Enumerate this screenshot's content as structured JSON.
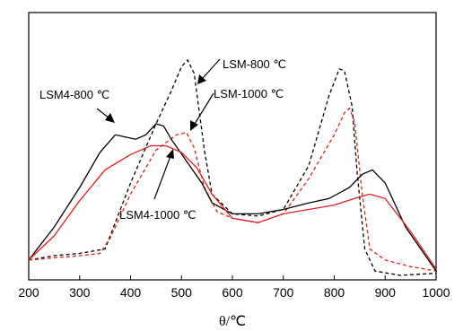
{
  "chart_data": {
    "type": "line",
    "xlabel": "θ/℃",
    "ylabel": "",
    "xlim": [
      200,
      1000
    ],
    "xticks": [
      200,
      300,
      400,
      500,
      600,
      700,
      800,
      900,
      1000
    ],
    "grid": false,
    "series": [
      {
        "name": "LSM-800 ℃",
        "color": "#000000",
        "dashed": true,
        "points": [
          [
            200,
            0.05
          ],
          [
            250,
            0.07
          ],
          [
            300,
            0.08
          ],
          [
            350,
            0.1
          ],
          [
            400,
            0.4
          ],
          [
            450,
            0.67
          ],
          [
            480,
            0.82
          ],
          [
            500,
            0.93
          ],
          [
            512,
            0.96
          ],
          [
            525,
            0.9
          ],
          [
            545,
            0.55
          ],
          [
            560,
            0.35
          ],
          [
            600,
            0.26
          ],
          [
            650,
            0.25
          ],
          [
            700,
            0.28
          ],
          [
            750,
            0.48
          ],
          [
            790,
            0.8
          ],
          [
            810,
            0.92
          ],
          [
            820,
            0.91
          ],
          [
            835,
            0.75
          ],
          [
            845,
            0.45
          ],
          [
            860,
            0.1
          ],
          [
            880,
            0.0
          ],
          [
            930,
            -0.02
          ],
          [
            1000,
            -0.01
          ]
        ]
      },
      {
        "name": "LSM-1000 ℃",
        "color": "#e02020",
        "dashed": true,
        "points": [
          [
            200,
            0.05
          ],
          [
            300,
            0.07
          ],
          [
            340,
            0.08
          ],
          [
            360,
            0.15
          ],
          [
            400,
            0.35
          ],
          [
            450,
            0.55
          ],
          [
            490,
            0.62
          ],
          [
            510,
            0.63
          ],
          [
            525,
            0.56
          ],
          [
            545,
            0.38
          ],
          [
            570,
            0.27
          ],
          [
            600,
            0.24
          ],
          [
            650,
            0.22
          ],
          [
            700,
            0.26
          ],
          [
            750,
            0.42
          ],
          [
            800,
            0.62
          ],
          [
            820,
            0.72
          ],
          [
            830,
            0.74
          ],
          [
            840,
            0.68
          ],
          [
            855,
            0.35
          ],
          [
            870,
            0.1
          ],
          [
            900,
            0.05
          ],
          [
            950,
            0.02
          ],
          [
            1000,
            0.0
          ]
        ]
      },
      {
        "name": "LSM4-800 ℃",
        "color": "#000000",
        "dashed": false,
        "points": [
          [
            200,
            0.05
          ],
          [
            250,
            0.2
          ],
          [
            300,
            0.38
          ],
          [
            340,
            0.54
          ],
          [
            370,
            0.62
          ],
          [
            390,
            0.61
          ],
          [
            410,
            0.6
          ],
          [
            430,
            0.62
          ],
          [
            450,
            0.67
          ],
          [
            465,
            0.66
          ],
          [
            480,
            0.6
          ],
          [
            510,
            0.5
          ],
          [
            540,
            0.4
          ],
          [
            560,
            0.31
          ],
          [
            600,
            0.26
          ],
          [
            650,
            0.26
          ],
          [
            700,
            0.28
          ],
          [
            750,
            0.31
          ],
          [
            790,
            0.33
          ],
          [
            830,
            0.38
          ],
          [
            855,
            0.44
          ],
          [
            875,
            0.46
          ],
          [
            900,
            0.4
          ],
          [
            940,
            0.2
          ],
          [
            1000,
            0.0
          ]
        ]
      },
      {
        "name": "LSM4-1000 ℃",
        "color": "#e02020",
        "dashed": false,
        "points": [
          [
            200,
            0.05
          ],
          [
            250,
            0.16
          ],
          [
            300,
            0.32
          ],
          [
            350,
            0.46
          ],
          [
            400,
            0.53
          ],
          [
            440,
            0.57
          ],
          [
            470,
            0.57
          ],
          [
            500,
            0.54
          ],
          [
            530,
            0.47
          ],
          [
            560,
            0.35
          ],
          [
            600,
            0.24
          ],
          [
            650,
            0.22
          ],
          [
            700,
            0.26
          ],
          [
            750,
            0.28
          ],
          [
            800,
            0.3
          ],
          [
            840,
            0.33
          ],
          [
            870,
            0.35
          ],
          [
            900,
            0.33
          ],
          [
            950,
            0.18
          ],
          [
            1000,
            0.01
          ]
        ]
      }
    ],
    "annotations": [
      {
        "text": "LSM-800 ℃",
        "target": [
          530,
          0.86
        ]
      },
      {
        "text": "LSM-1000 ℃",
        "target": [
          515,
          0.6
        ]
      },
      {
        "text": "LSM4-800 ℃",
        "target": [
          390,
          0.62
        ]
      },
      {
        "text": "LSM4-1000 ℃",
        "target": [
          485,
          0.55
        ]
      }
    ]
  }
}
